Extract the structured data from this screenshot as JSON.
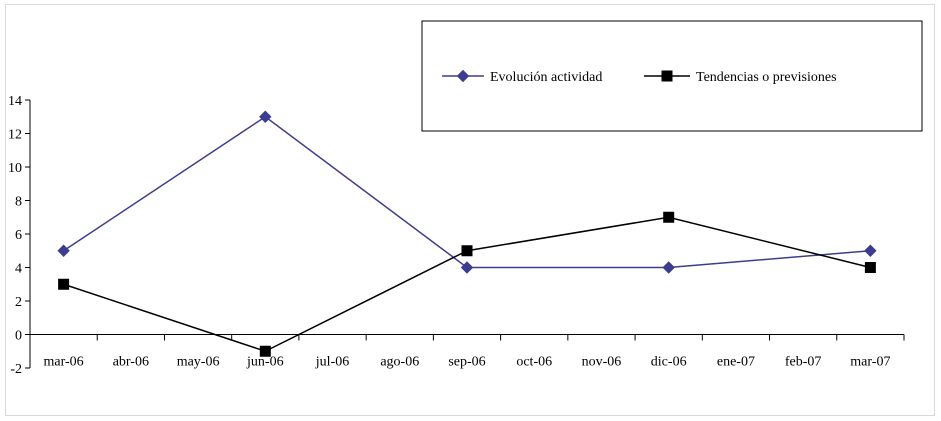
{
  "chart_data": {
    "type": "line",
    "categories": [
      "mar-06",
      "abr-06",
      "may-06",
      "jun-06",
      "jul-06",
      "ago-06",
      "sep-06",
      "oct-06",
      "nov-06",
      "dic-06",
      "ene-07",
      "feb-07",
      "mar-07"
    ],
    "ylim": [
      -2,
      14
    ],
    "yticks": [
      -2,
      0,
      2,
      4,
      6,
      8,
      10,
      12,
      14
    ],
    "grid": false,
    "legend_position": "top-right",
    "series": [
      {
        "name": "Evolución actividad",
        "marker": "diamond",
        "color": "#3d3d8f",
        "points": [
          [
            0,
            5
          ],
          [
            3,
            13
          ],
          [
            6,
            4
          ],
          [
            9,
            4
          ],
          [
            12,
            5
          ]
        ]
      },
      {
        "name": "Tendencias o previsiones",
        "marker": "square",
        "color": "#000000",
        "points": [
          [
            0,
            3
          ],
          [
            3,
            -1
          ],
          [
            6,
            5
          ],
          [
            9,
            7
          ],
          [
            12,
            4
          ]
        ]
      }
    ]
  }
}
